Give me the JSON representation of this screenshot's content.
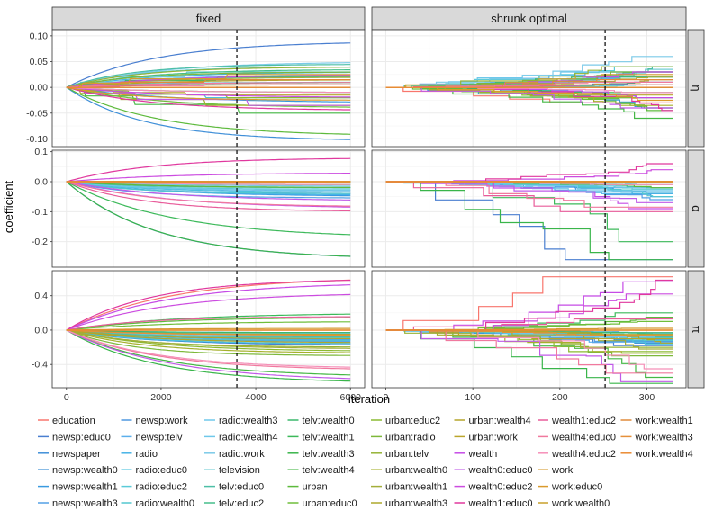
{
  "chart_data": {
    "type": "line",
    "title": "",
    "xlabel": "iteration",
    "ylabel": "coefficient",
    "columns": [
      {
        "label": "fixed",
        "xlim": [
          -300,
          6300
        ],
        "xticks": [
          0,
          2000,
          4000,
          6000
        ],
        "xmax": 6000,
        "vline": 3600
      },
      {
        "label": "shrunk optimal",
        "xlim": [
          -16,
          345
        ],
        "xticks": [
          0,
          100,
          200,
          300
        ],
        "xmax": 330,
        "vline": 252
      }
    ],
    "rows": [
      {
        "label": "η",
        "ylim": [
          -0.115,
          0.112
        ],
        "yticks": [
          -0.1,
          -0.05,
          0.0,
          0.05,
          0.1
        ],
        "yticklabels": [
          "-0.10",
          "-0.05",
          "0.00",
          "0.05",
          "0.10"
        ]
      },
      {
        "label": "α",
        "ylim": [
          -0.285,
          0.105
        ],
        "yticks": [
          -0.2,
          -0.1,
          0.0,
          0.1
        ],
        "yticklabels": [
          "-0.2",
          "-0.1",
          "0.0",
          "0.1"
        ]
      },
      {
        "label": "π",
        "ylim": [
          -0.67,
          0.69
        ],
        "yticks": [
          -0.4,
          0.0,
          0.4
        ],
        "yticklabels": [
          "-0.4",
          "0.0",
          "0.4"
        ]
      }
    ],
    "legend_position": "bottom",
    "series": [
      {
        "name": "education",
        "color": "#F8766D",
        "finals": [
          0.0,
          0.0,
          0.62
        ],
        "finals_shrunk": [
          -0.03,
          0.0,
          0.62
        ],
        "speed": 0.2
      },
      {
        "name": "newsp:educ0",
        "color": "#4A7FD0",
        "finals": [
          0.09,
          -0.26,
          -0.18
        ],
        "finals_shrunk": [
          0.0,
          -0.26,
          -0.18
        ],
        "speed": 0.35
      },
      {
        "name": "newspaper",
        "color": "#3F8FD8",
        "finals": [
          -0.104,
          0.0,
          -0.03
        ],
        "finals_shrunk": [
          -0.02,
          0.0,
          -0.03
        ],
        "speed": 0.5
      },
      {
        "name": "newsp:wealth0",
        "color": "#2B86D0",
        "finals": [
          0.0,
          -0.04,
          -0.16
        ],
        "finals_shrunk": [
          0.01,
          -0.04,
          -0.15
        ],
        "speed": 0.6
      },
      {
        "name": "newsp:wealth1",
        "color": "#3A9AE0",
        "finals": [
          -0.03,
          -0.05,
          -0.12
        ],
        "finals_shrunk": [
          -0.04,
          -0.05,
          -0.12
        ],
        "speed": 0.4
      },
      {
        "name": "newsp:wealth3",
        "color": "#52A0E6",
        "finals": [
          0.0,
          -0.055,
          -0.11
        ],
        "finals_shrunk": [
          0.0,
          -0.06,
          -0.11
        ],
        "speed": 0.45
      },
      {
        "name": "newsp:work",
        "color": "#4F98E0",
        "finals": [
          0.015,
          -0.03,
          -0.13
        ],
        "finals_shrunk": [
          0.02,
          -0.02,
          -0.13
        ],
        "speed": 0.5
      },
      {
        "name": "newsp:telv",
        "color": "#5BAFEC",
        "finals": [
          0.02,
          -0.02,
          -0.14
        ],
        "finals_shrunk": [
          0.03,
          -0.02,
          -0.14
        ],
        "speed": 0.55
      },
      {
        "name": "radio",
        "color": "#46B3E6",
        "finals": [
          0.03,
          -0.045,
          -0.1
        ],
        "finals_shrunk": [
          0.03,
          -0.04,
          -0.1
        ],
        "speed": 0.5
      },
      {
        "name": "radio:educ0",
        "color": "#4CC2DE",
        "finals": [
          -0.02,
          -0.035,
          -0.16
        ],
        "finals_shrunk": [
          -0.02,
          -0.035,
          -0.16
        ],
        "speed": 0.6
      },
      {
        "name": "radio:educ2",
        "color": "#5ACBD8",
        "finals": [
          0.04,
          -0.025,
          -0.09
        ],
        "finals_shrunk": [
          0.04,
          -0.025,
          -0.09
        ],
        "speed": 0.5
      },
      {
        "name": "radio:wealth0",
        "color": "#52C7CF",
        "finals": [
          0.01,
          -0.04,
          -0.12
        ],
        "finals_shrunk": [
          0.005,
          -0.05,
          -0.12
        ],
        "speed": 0.55
      },
      {
        "name": "radio:wealth3",
        "color": "#6FC8EA",
        "finals": [
          0.02,
          -0.03,
          -0.08
        ],
        "finals_shrunk": [
          0.02,
          -0.03,
          -0.08
        ],
        "speed": 0.5
      },
      {
        "name": "radio:wealth4",
        "color": "#6FC8EA",
        "finals": [
          0.025,
          -0.02,
          -0.07
        ],
        "finals_shrunk": [
          0.03,
          -0.03,
          -0.07
        ],
        "speed": 0.45
      },
      {
        "name": "radio:work",
        "color": "#7BCAE8",
        "finals": [
          0.05,
          -0.015,
          -0.06
        ],
        "finals_shrunk": [
          0.06,
          -0.02,
          -0.06
        ],
        "speed": 0.5
      },
      {
        "name": "television",
        "color": "#72CDD6",
        "finals": [
          0.03,
          -0.01,
          -0.04
        ],
        "finals_shrunk": [
          0.035,
          -0.01,
          -0.04
        ],
        "speed": 0.5
      },
      {
        "name": "telv:educ0",
        "color": "#4DBFA6",
        "finals": [
          0.045,
          -0.02,
          -0.08
        ],
        "finals_shrunk": [
          0.04,
          -0.02,
          -0.08
        ],
        "speed": 0.55
      },
      {
        "name": "telv:educ2",
        "color": "#45BE8A",
        "finals": [
          0.035,
          0.0,
          -0.05
        ],
        "finals_shrunk": [
          0.03,
          0.0,
          -0.05
        ],
        "speed": 0.5
      },
      {
        "name": "telv:wealth0",
        "color": "#3AB86C",
        "finals": [
          0.02,
          0.0,
          -0.03
        ],
        "finals_shrunk": [
          0.02,
          0.0,
          -0.03
        ],
        "speed": 0.5
      },
      {
        "name": "telv:wealth1",
        "color": "#3CB95A",
        "finals": [
          0.01,
          -0.19,
          0.2
        ],
        "finals_shrunk": [
          0.0,
          -0.2,
          0.2
        ],
        "speed": 0.35
      },
      {
        "name": "telv:wealth3",
        "color": "#39B54A",
        "finals": [
          -0.01,
          -0.26,
          -0.62
        ],
        "finals_shrunk": [
          -0.01,
          -0.26,
          -0.62
        ],
        "speed": 0.3
      },
      {
        "name": "telv:wealth4",
        "color": "#45B845",
        "finals": [
          -0.05,
          0.0,
          -0.55
        ],
        "finals_shrunk": [
          -0.06,
          0.0,
          -0.55
        ],
        "speed": 0.3
      },
      {
        "name": "urban",
        "color": "#5DBA3C",
        "finals": [
          -0.095,
          -0.02,
          0.15
        ],
        "finals_shrunk": [
          -0.045,
          -0.02,
          0.15
        ],
        "speed": 0.4
      },
      {
        "name": "urban:educ0",
        "color": "#6FBE3A",
        "finals": [
          -0.04,
          -0.01,
          0.1
        ],
        "finals_shrunk": [
          -0.04,
          0.0,
          0.1
        ],
        "speed": 0.45
      },
      {
        "name": "urban:educ2",
        "color": "#8BBA32",
        "finals": [
          -0.02,
          0.0,
          -0.25
        ],
        "finals_shrunk": [
          -0.02,
          0.0,
          -0.25
        ],
        "speed": 0.5
      },
      {
        "name": "urban:radio",
        "color": "#7DB83A",
        "finals": [
          0.03,
          0.0,
          -0.3
        ],
        "finals_shrunk": [
          0.03,
          0.0,
          -0.3
        ],
        "speed": 0.5
      },
      {
        "name": "urban:telv",
        "color": "#95B335",
        "finals": [
          0.04,
          0.0,
          -0.2
        ],
        "finals_shrunk": [
          0.04,
          0.0,
          -0.2
        ],
        "speed": 0.5
      },
      {
        "name": "urban:wealth0",
        "color": "#A5B02C",
        "finals": [
          -0.035,
          0.0,
          -0.27
        ],
        "finals_shrunk": [
          -0.035,
          0.0,
          -0.27
        ],
        "speed": 0.5
      },
      {
        "name": "urban:wealth1",
        "color": "#A3AE3A",
        "finals": [
          0.02,
          0.0,
          -0.22
        ],
        "finals_shrunk": [
          0.02,
          0.0,
          -0.22
        ],
        "speed": 0.5
      },
      {
        "name": "urban:wealth3",
        "color": "#ADA82C",
        "finals": [
          0.015,
          0.0,
          -0.15
        ],
        "finals_shrunk": [
          0.015,
          0.0,
          -0.15
        ],
        "speed": 0.5
      },
      {
        "name": "urban:wealth4",
        "color": "#B5A52A",
        "finals": [
          -0.015,
          0.0,
          -0.1
        ],
        "finals_shrunk": [
          -0.015,
          0.0,
          -0.1
        ],
        "speed": 0.5
      },
      {
        "name": "urban:work",
        "color": "#BBA52B",
        "finals": [
          0.005,
          0.0,
          -0.05
        ],
        "finals_shrunk": [
          0.005,
          0.0,
          -0.05
        ],
        "speed": 0.5
      },
      {
        "name": "wealth",
        "color": "#C64BE6",
        "finals": [
          -0.02,
          -0.09,
          0.56
        ],
        "finals_shrunk": [
          -0.02,
          -0.09,
          0.56
        ],
        "speed": 0.3
      },
      {
        "name": "wealth0:educ0",
        "color": "#C05AE8",
        "finals": [
          -0.035,
          -0.065,
          -0.6
        ],
        "finals_shrunk": [
          -0.04,
          -0.07,
          -0.6
        ],
        "speed": 0.35
      },
      {
        "name": "wealth0:educ2",
        "color": "#CC4CE0",
        "finals": [
          0.025,
          0.03,
          0.44
        ],
        "finals_shrunk": [
          0.03,
          0.04,
          0.42
        ],
        "speed": 0.4
      },
      {
        "name": "wealth1:educ0",
        "color": "#E0389E",
        "finals": [
          -0.045,
          0.08,
          0.6
        ],
        "finals_shrunk": [
          -0.045,
          0.06,
          0.58
        ],
        "speed": 0.35
      },
      {
        "name": "wealth1:educ2",
        "color": "#E85C9A",
        "finals": [
          0.005,
          -0.1,
          0.16
        ],
        "finals_shrunk": [
          0.005,
          -0.1,
          0.13
        ],
        "speed": 0.45
      },
      {
        "name": "wealth4:educ0",
        "color": "#F0799E",
        "finals": [
          0.01,
          -0.085,
          -0.47
        ],
        "finals_shrunk": [
          0.01,
          -0.085,
          -0.5
        ],
        "speed": 0.4
      },
      {
        "name": "wealth4:educ2",
        "color": "#F58FB8",
        "finals": [
          -0.01,
          -0.01,
          -0.45
        ],
        "finals_shrunk": [
          -0.01,
          -0.01,
          -0.45
        ],
        "speed": 0.45
      },
      {
        "name": "work",
        "color": "#D49A30",
        "finals": [
          0.025,
          0.0,
          0.02
        ],
        "finals_shrunk": [
          0.025,
          0.0,
          0.02
        ],
        "speed": 0.5
      },
      {
        "name": "work:educ0",
        "color": "#DA9A2C",
        "finals": [
          -0.025,
          0.0,
          0.0
        ],
        "finals_shrunk": [
          -0.025,
          0.0,
          0.0
        ],
        "speed": 0.5
      },
      {
        "name": "work:wealth0",
        "color": "#C9A02A",
        "finals": [
          0.0,
          0.0,
          0.0
        ],
        "finals_shrunk": [
          0.0,
          0.0,
          0.0
        ],
        "speed": 0.5
      },
      {
        "name": "work:wealth1",
        "color": "#E08A3A",
        "finals": [
          0.015,
          0.0,
          0.0
        ],
        "finals_shrunk": [
          0.015,
          0.0,
          0.0
        ],
        "speed": 0.5
      },
      {
        "name": "work:wealth3",
        "color": "#E5903A",
        "finals": [
          0.0,
          0.0,
          -0.06
        ],
        "finals_shrunk": [
          0.0,
          0.0,
          -0.06
        ],
        "speed": 0.5
      },
      {
        "name": "work:wealth4",
        "color": "#EA8A32",
        "finals": [
          0.0,
          0.0,
          0.0
        ],
        "finals_shrunk": [
          0.0,
          0.0,
          0.0
        ],
        "speed": 0.5
      }
    ],
    "legend_columns": [
      [
        "education",
        "newsp:educ0",
        "newspaper",
        "newsp:wealth0",
        "newsp:wealth1",
        "newsp:wealth3"
      ],
      [
        "newsp:work",
        "newsp:telv",
        "radio",
        "radio:educ0",
        "radio:educ2",
        "radio:wealth0"
      ],
      [
        "radio:wealth3",
        "radio:wealth4",
        "radio:work",
        "television",
        "telv:educ0",
        "telv:educ2"
      ],
      [
        "telv:wealth0",
        "telv:wealth1",
        "telv:wealth3",
        "telv:wealth4",
        "urban",
        "urban:educ0"
      ],
      [
        "urban:educ2",
        "urban:radio",
        "urban:telv",
        "urban:wealth0",
        "urban:wealth1",
        "urban:wealth3"
      ],
      [
        "urban:wealth4",
        "urban:work",
        "wealth",
        "wealth0:educ0",
        "wealth0:educ2",
        "wealth1:educ0"
      ],
      [
        "wealth1:educ2",
        "wealth4:educ0",
        "wealth4:educ2",
        "work",
        "work:educ0",
        "work:wealth0"
      ],
      [
        "work:wealth1",
        "work:wealth3",
        "work:wealth4"
      ]
    ]
  }
}
